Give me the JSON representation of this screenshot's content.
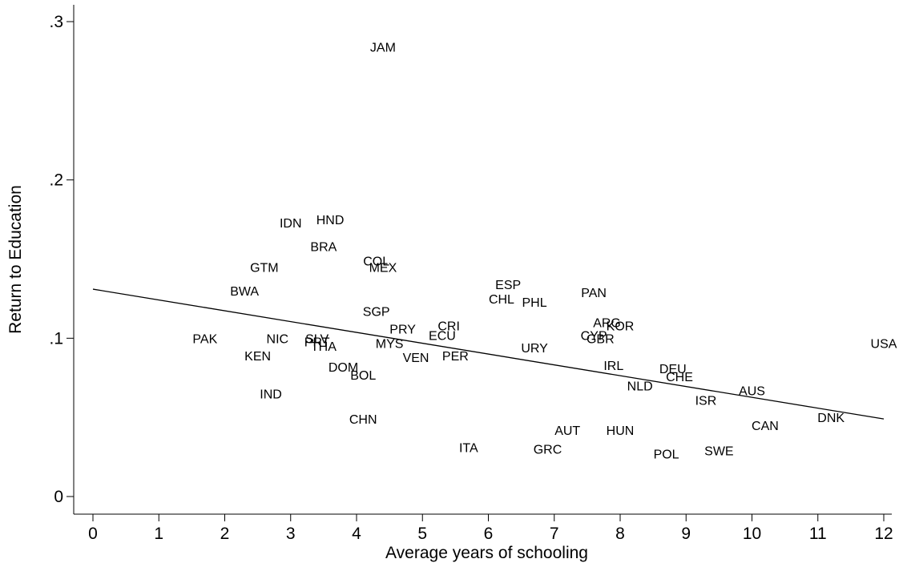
{
  "chart_data": {
    "type": "scatter",
    "title": "",
    "xlabel": "Average years of schooling",
    "ylabel": "Return to Education",
    "xlim": [
      0,
      12
    ],
    "ylim": [
      0,
      0.3
    ],
    "xticks": [
      {
        "value": 0,
        "label": "0"
      },
      {
        "value": 1,
        "label": "1"
      },
      {
        "value": 2,
        "label": "2"
      },
      {
        "value": 3,
        "label": "3"
      },
      {
        "value": 4,
        "label": "4"
      },
      {
        "value": 5,
        "label": "5"
      },
      {
        "value": 6,
        "label": "6"
      },
      {
        "value": 7,
        "label": "7"
      },
      {
        "value": 8,
        "label": "8"
      },
      {
        "value": 9,
        "label": "9"
      },
      {
        "value": 10,
        "label": "10"
      },
      {
        "value": 11,
        "label": "11"
      },
      {
        "value": 12,
        "label": "12"
      }
    ],
    "yticks": [
      {
        "value": 0,
        "label": "0"
      },
      {
        "value": 0.1,
        "label": ".1"
      },
      {
        "value": 0.2,
        "label": ".2"
      },
      {
        "value": 0.3,
        "label": ".3"
      }
    ],
    "grid": false,
    "marker": "country-code-labels",
    "points": [
      {
        "label": "JAM",
        "x": 4.4,
        "y": 0.284
      },
      {
        "label": "IDN",
        "x": 3.0,
        "y": 0.173
      },
      {
        "label": "HND",
        "x": 3.6,
        "y": 0.175
      },
      {
        "label": "BRA",
        "x": 3.5,
        "y": 0.158
      },
      {
        "label": "COL",
        "x": 4.3,
        "y": 0.149
      },
      {
        "label": "MEX",
        "x": 4.4,
        "y": 0.145
      },
      {
        "label": "GTM",
        "x": 2.6,
        "y": 0.145
      },
      {
        "label": "BWA",
        "x": 2.3,
        "y": 0.13
      },
      {
        "label": "SGP",
        "x": 4.3,
        "y": 0.117
      },
      {
        "label": "ESP",
        "x": 6.3,
        "y": 0.134
      },
      {
        "label": "CHL",
        "x": 6.2,
        "y": 0.125
      },
      {
        "label": "PHL",
        "x": 6.7,
        "y": 0.123
      },
      {
        "label": "PAN",
        "x": 7.6,
        "y": 0.129
      },
      {
        "label": "ARG",
        "x": 7.8,
        "y": 0.11
      },
      {
        "label": "KOR",
        "x": 8.0,
        "y": 0.108
      },
      {
        "label": "CYP",
        "x": 7.6,
        "y": 0.102
      },
      {
        "label": "GBR",
        "x": 7.7,
        "y": 0.1
      },
      {
        "label": "PAK",
        "x": 1.7,
        "y": 0.1
      },
      {
        "label": "NIC",
        "x": 2.8,
        "y": 0.1
      },
      {
        "label": "SLV",
        "x": 3.4,
        "y": 0.1
      },
      {
        "label": "PRT",
        "x": 3.4,
        "y": 0.098
      },
      {
        "label": "THA",
        "x": 3.5,
        "y": 0.095
      },
      {
        "label": "KEN",
        "x": 2.5,
        "y": 0.089
      },
      {
        "label": "PRY",
        "x": 4.7,
        "y": 0.106
      },
      {
        "label": "CRI",
        "x": 5.4,
        "y": 0.108
      },
      {
        "label": "ECU",
        "x": 5.3,
        "y": 0.102
      },
      {
        "label": "MYS",
        "x": 4.5,
        "y": 0.097
      },
      {
        "label": "VEN",
        "x": 4.9,
        "y": 0.088
      },
      {
        "label": "PER",
        "x": 5.5,
        "y": 0.089
      },
      {
        "label": "URY",
        "x": 6.7,
        "y": 0.094
      },
      {
        "label": "DOM",
        "x": 3.8,
        "y": 0.082
      },
      {
        "label": "BOL",
        "x": 4.1,
        "y": 0.077
      },
      {
        "label": "IRL",
        "x": 7.9,
        "y": 0.083
      },
      {
        "label": "DEU",
        "x": 8.8,
        "y": 0.081
      },
      {
        "label": "CHE",
        "x": 8.9,
        "y": 0.076
      },
      {
        "label": "NLD",
        "x": 8.3,
        "y": 0.07
      },
      {
        "label": "AUS",
        "x": 10.0,
        "y": 0.067
      },
      {
        "label": "ISR",
        "x": 9.3,
        "y": 0.061
      },
      {
        "label": "IND",
        "x": 2.7,
        "y": 0.065
      },
      {
        "label": "USA",
        "x": 12.0,
        "y": 0.097
      },
      {
        "label": "DNK",
        "x": 11.2,
        "y": 0.05
      },
      {
        "label": "CAN",
        "x": 10.2,
        "y": 0.045
      },
      {
        "label": "CHN",
        "x": 4.1,
        "y": 0.049
      },
      {
        "label": "AUT",
        "x": 7.2,
        "y": 0.042
      },
      {
        "label": "HUN",
        "x": 8.0,
        "y": 0.042
      },
      {
        "label": "ITA",
        "x": 5.7,
        "y": 0.031
      },
      {
        "label": "GRC",
        "x": 6.9,
        "y": 0.03
      },
      {
        "label": "POL",
        "x": 8.7,
        "y": 0.027
      },
      {
        "label": "SWE",
        "x": 9.5,
        "y": 0.029
      }
    ],
    "fit_line": {
      "x": [
        0,
        12
      ],
      "y": [
        0.131,
        0.049
      ]
    }
  }
}
